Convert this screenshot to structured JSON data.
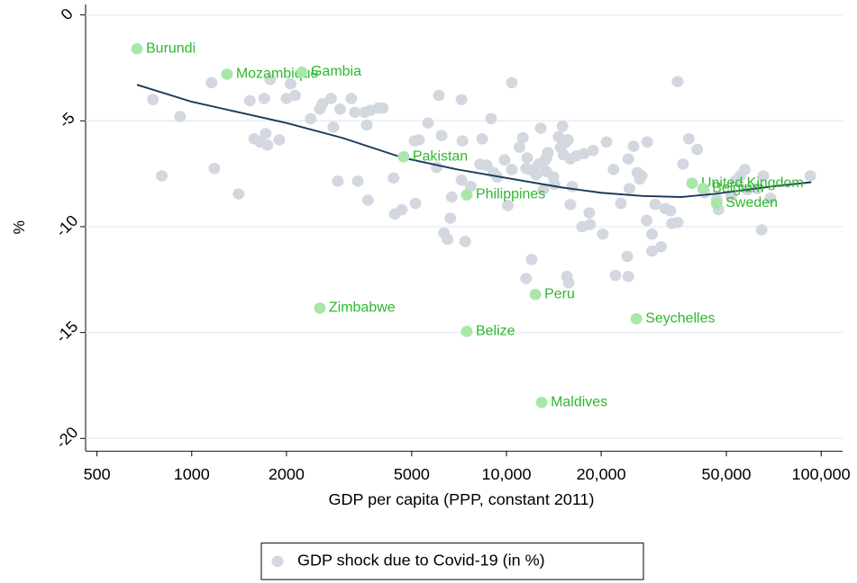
{
  "chart_data": {
    "type": "scatter",
    "x_label": "GDP per capita (PPP, constant 2011)",
    "y_label": "%",
    "xscale": "log",
    "xlim": [
      460,
      117000
    ],
    "ylim": [
      -20.6,
      0.5
    ],
    "xticks": [
      500,
      1000,
      2000,
      5000,
      {
        "value": 10000,
        "label": "10,000"
      },
      {
        "value": 20000,
        "label": "20,000"
      },
      {
        "value": 50000,
        "label": "50,000"
      },
      {
        "value": 100000,
        "label": "100,000"
      }
    ],
    "yticks": [
      0,
      -5,
      -10,
      -15,
      -20
    ],
    "grid": true,
    "legend": "bottom",
    "series": [
      {
        "name": "GDP shock due to Covid-19 (in %)",
        "color": "#d3d7df",
        "x": [
          753,
          804,
          918,
          1156,
          1180,
          1409,
          1530,
          1580,
          1650,
          1700,
          1717,
          1740,
          1775,
          1897,
          2000,
          2060,
          2130,
          2388,
          2553,
          2600,
          2770,
          2818,
          2911,
          2960,
          3214,
          3300,
          3370,
          3548,
          3600,
          3630,
          3700,
          3917,
          4046,
          4380,
          4420,
          4650,
          5105,
          5272,
          5140,
          5636,
          6000,
          6100,
          6223,
          6330,
          6500,
          6637,
          6700,
          7200,
          7250,
          7200,
          7400,
          7700,
          8250,
          8375,
          8650,
          8933,
          9100,
          9350,
          9863,
          10100,
          10400,
          10400,
          11000,
          11270,
          11550,
          11640,
          11830,
          12020,
          11550,
          12440,
          12650,
          12850,
          13200,
          13400,
          13400,
          13100,
          13550,
          14100,
          14200,
          14650,
          14870,
          15070,
          15170,
          15370,
          15670,
          15570,
          15770,
          15970,
          16180,
          15970,
          16710,
          17400,
          17650,
          18330,
          18450,
          18850,
          20240,
          20800,
          21900,
          22200,
          23100,
          24200,
          24400,
          24400,
          24600,
          25350,
          26050,
          26550,
          26900,
          27900,
          28000,
          29000,
          29000,
          29700,
          31000,
          32000,
          33200,
          33600,
          35000,
          35000,
          36400,
          38000,
          40400,
          42700,
          46600,
          47200,
          51800,
          53600,
          55300,
          57200,
          58300,
          65500,
          64700,
          62600,
          69000,
          92400
        ],
        "values": [
          -4.0,
          -7.6,
          -4.8,
          -3.2,
          -7.25,
          -8.45,
          -4.05,
          -5.85,
          -6.0,
          -3.95,
          -5.6,
          -6.15,
          -3.05,
          -5.9,
          -3.95,
          -3.25,
          -3.8,
          -4.9,
          -4.45,
          -4.2,
          -3.95,
          -5.3,
          -7.85,
          -4.45,
          -3.95,
          -4.6,
          -7.85,
          -4.6,
          -5.2,
          -8.75,
          -4.5,
          -4.4,
          -4.4,
          -7.7,
          -9.4,
          -9.2,
          -5.95,
          -5.9,
          -8.9,
          -5.1,
          -7.2,
          -3.8,
          -5.7,
          -10.3,
          -10.6,
          -9.6,
          -8.6,
          -4.0,
          -5.95,
          -7.8,
          -10.7,
          -8.1,
          -7.05,
          -5.85,
          -7.1,
          -4.9,
          -7.45,
          -7.65,
          -6.85,
          -9.0,
          -3.2,
          -7.3,
          -6.25,
          -5.8,
          -7.25,
          -6.75,
          -7.3,
          -11.55,
          -12.45,
          -7.55,
          -7.05,
          -5.35,
          -6.9,
          -6.75,
          -7.4,
          -8.25,
          -6.5,
          -7.65,
          -8.0,
          -5.75,
          -6.25,
          -5.25,
          -6.6,
          -6.05,
          -5.9,
          -12.35,
          -12.65,
          -6.8,
          -8.1,
          -8.95,
          -6.65,
          -10.0,
          -6.55,
          -9.35,
          -9.9,
          -6.4,
          -10.35,
          -6.0,
          -7.3,
          -12.3,
          -8.9,
          -11.4,
          -12.35,
          -6.8,
          -8.2,
          -6.2,
          -7.45,
          -7.75,
          -7.6,
          -9.7,
          -6.0,
          -11.15,
          -10.35,
          -8.95,
          -10.95,
          -9.15,
          -9.25,
          -9.85,
          -9.8,
          -3.15,
          -7.05,
          -5.85,
          -6.35,
          -8.4,
          -8.7,
          -9.2,
          -8.55,
          -7.8,
          -7.6,
          -7.3,
          -8.25,
          -7.6,
          -10.15,
          -8.2,
          -8.65,
          -7.6
        ]
      }
    ],
    "labeled_points": {
      "color": "#a9e6a9",
      "label_color": "#2eb82e",
      "labels": [
        "Burundi",
        "Mozambique",
        "Gambia",
        "Pakistan",
        "Philippines",
        "United Kingdom",
        "Belgium",
        "Sweden",
        "Zimbabwe",
        "Peru",
        "Belize",
        "Seychelles",
        "Maldives"
      ],
      "x": [
        670,
        1294,
        2239,
        4713,
        7482,
        38905,
        42170,
        46559,
        2553,
        12360,
        7482,
        25882,
        12942
      ],
      "values": [
        -1.6,
        -2.8,
        -2.7,
        -6.7,
        -8.5,
        -7.95,
        -8.2,
        -8.9,
        -13.85,
        -13.2,
        -14.95,
        -14.35,
        -18.3
      ]
    },
    "fit": {
      "color": "#1a3a5c",
      "x": [
        670,
        1000,
        2000,
        3000,
        4700,
        7000,
        10000,
        15000,
        20000,
        27000,
        36000,
        46000,
        55000,
        70000,
        93000
      ],
      "values": [
        -3.3,
        -4.1,
        -5.1,
        -5.8,
        -6.75,
        -7.3,
        -7.7,
        -8.15,
        -8.4,
        -8.55,
        -8.6,
        -8.45,
        -8.3,
        -8.1,
        -7.9
      ]
    }
  }
}
